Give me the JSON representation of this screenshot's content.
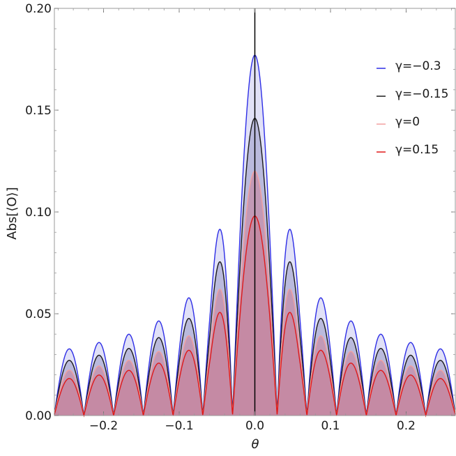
{
  "chart_data": {
    "type": "area",
    "xlabel": "θ",
    "ylabel": "Abs[⟨O⟩]",
    "xlim": [
      -0.265,
      0.265
    ],
    "ylim": [
      0,
      0.2
    ],
    "x_ticks": [
      -0.2,
      -0.1,
      0.0,
      0.1,
      0.2
    ],
    "x_tick_labels": [
      "−0.2",
      "−0.1",
      "0.0",
      "0.1",
      "0.2"
    ],
    "y_ticks": [
      0.0,
      0.05,
      0.1,
      0.15,
      0.2
    ],
    "y_tick_labels": [
      "0.00",
      "0.05",
      "0.10",
      "0.15",
      "0.20"
    ],
    "vertical_line_x": 0.0,
    "grid": false,
    "legend_position": "right",
    "lobe_period": 0.0393,
    "lobe_peaks_x": [
      -0.2554,
      -0.2161,
      -0.1768,
      -0.1375,
      -0.0982,
      -0.0589,
      0.0,
      0.0589,
      0.0982,
      0.1375,
      0.1768,
      0.2161,
      0.2554
    ],
    "series": [
      {
        "name": "γ=−0.3",
        "color": "#2e2ee6",
        "fill": "#c8c8f0",
        "peak_at_0": 0.177,
        "lobe_peak_values": [
          0.032,
          0.035,
          0.0385,
          0.0442,
          0.053,
          0.0713,
          0.177,
          0.0713,
          0.053,
          0.0442,
          0.0385,
          0.035,
          0.032
        ]
      },
      {
        "name": "γ=−0.15",
        "color": "#1a1a1a",
        "fill": "#9a9ac8",
        "peak_at_0": 0.146,
        "lobe_peak_values": [
          0.0265,
          0.0289,
          0.0318,
          0.0364,
          0.0437,
          0.0589,
          0.146,
          0.0589,
          0.0437,
          0.0364,
          0.0318,
          0.0289,
          0.0265
        ]
      },
      {
        "name": "γ=0",
        "color": "#f2a0a0",
        "fill": "#c97d96",
        "peak_at_0": 0.12,
        "lobe_peak_values": [
          0.0218,
          0.0238,
          0.0262,
          0.03,
          0.0359,
          0.0484,
          0.12,
          0.0484,
          0.0359,
          0.03,
          0.0262,
          0.0238,
          0.0218
        ]
      },
      {
        "name": "γ=0.15",
        "color": "#e01818",
        "fill": "#c97d96",
        "peak_at_0": 0.098,
        "lobe_peak_values": [
          0.0178,
          0.0194,
          0.0214,
          0.0245,
          0.0294,
          0.0395,
          0.098,
          0.0395,
          0.0294,
          0.0245,
          0.0214,
          0.0194,
          0.0178
        ]
      }
    ]
  }
}
